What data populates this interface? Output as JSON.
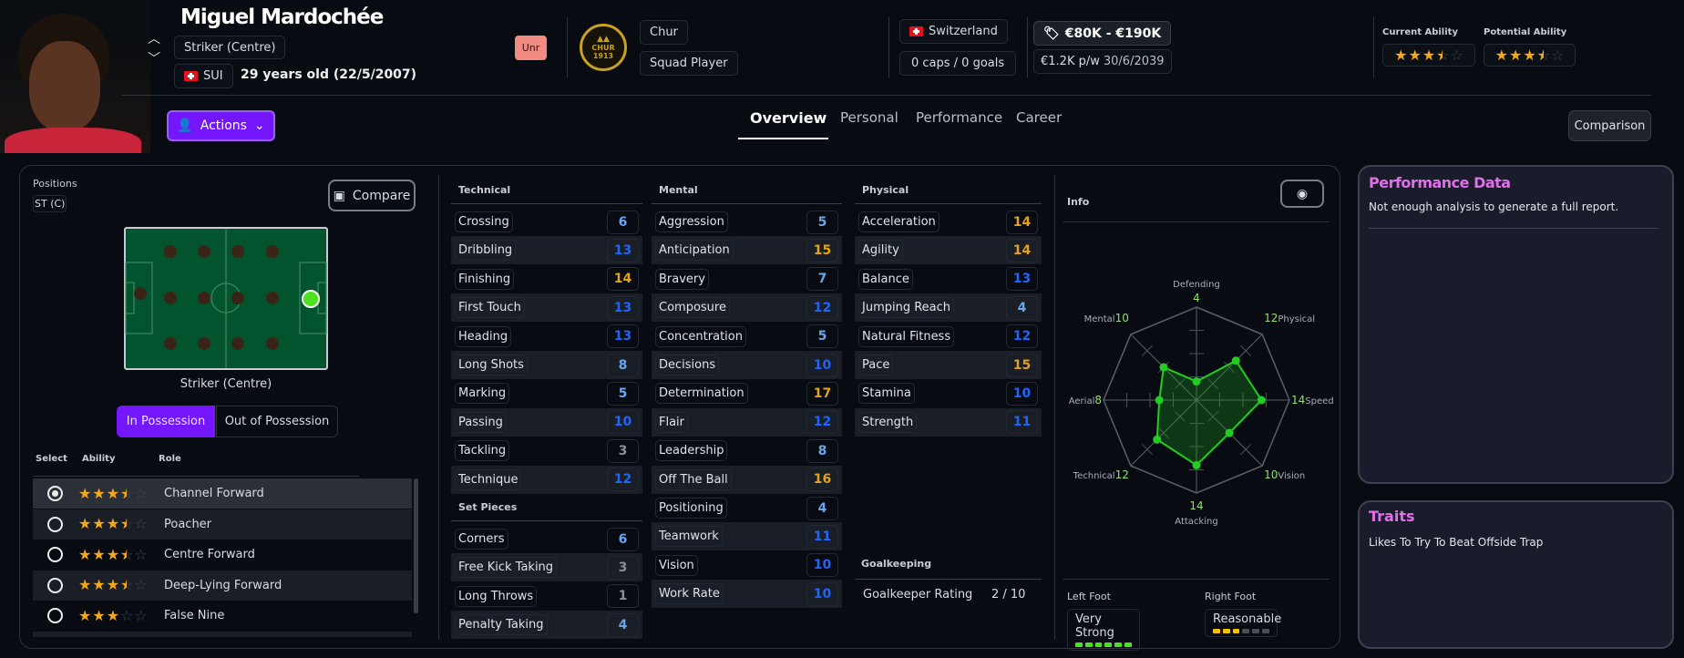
{
  "player": {
    "name": "Miguel Mardochée",
    "position": "Striker (Centre)",
    "nation_code": "SUI",
    "age": "29 years old (22/5/2007)",
    "status_badge": "Unr",
    "club": "Chur",
    "club_logo_text": "CHUR 1913",
    "squad_status": "Squad Player",
    "nationality": "Switzerland",
    "caps": "0 caps / 0 goals",
    "value": "€80K - €190K",
    "wage": "€1.2K p/w",
    "contract_end": "30/6/2039",
    "current_ability_label": "Current Ability",
    "current_ability_stars": 3.5,
    "potential_ability_label": "Potential Ability",
    "potential_ability_stars": 3.5
  },
  "actions_label": "Actions",
  "tabs": [
    "Overview",
    "Personal",
    "Performance",
    "Career"
  ],
  "active_tab": "Overview",
  "comparison_label": "Comparison",
  "positions": {
    "label": "Positions",
    "chip": "ST (C)",
    "compare_label": "Compare",
    "pitch_caption": "Striker (Centre)",
    "toggle": [
      "In Possession",
      "Out of Possession"
    ]
  },
  "roles": {
    "headers": [
      "Select",
      "Ability",
      "Role"
    ],
    "items": [
      {
        "name": "Channel Forward",
        "stars": 3.5,
        "selected": true
      },
      {
        "name": "Poacher",
        "stars": 3.5,
        "selected": false
      },
      {
        "name": "Centre Forward",
        "stars": 3.5,
        "selected": false
      },
      {
        "name": "Deep-Lying Forward",
        "stars": 3.5,
        "selected": false
      },
      {
        "name": "False Nine",
        "stars": 3,
        "selected": false
      }
    ]
  },
  "attributes": {
    "technical_title": "Technical",
    "technical": [
      [
        "Crossing",
        6
      ],
      [
        "Dribbling",
        13
      ],
      [
        "Finishing",
        14
      ],
      [
        "First Touch",
        13
      ],
      [
        "Heading",
        13
      ],
      [
        "Long Shots",
        8
      ],
      [
        "Marking",
        5
      ],
      [
        "Passing",
        10
      ],
      [
        "Tackling",
        3
      ],
      [
        "Technique",
        12
      ]
    ],
    "set_pieces_title": "Set Pieces",
    "set_pieces": [
      [
        "Corners",
        6
      ],
      [
        "Free Kick Taking",
        3
      ],
      [
        "Long Throws",
        1
      ],
      [
        "Penalty Taking",
        4
      ]
    ],
    "mental_title": "Mental",
    "mental": [
      [
        "Aggression",
        5
      ],
      [
        "Anticipation",
        15
      ],
      [
        "Bravery",
        7
      ],
      [
        "Composure",
        12
      ],
      [
        "Concentration",
        5
      ],
      [
        "Decisions",
        10
      ],
      [
        "Determination",
        17
      ],
      [
        "Flair",
        12
      ],
      [
        "Leadership",
        8
      ],
      [
        "Off The Ball",
        16
      ],
      [
        "Positioning",
        4
      ],
      [
        "Teamwork",
        11
      ],
      [
        "Vision",
        10
      ],
      [
        "Work Rate",
        10
      ]
    ],
    "physical_title": "Physical",
    "physical": [
      [
        "Acceleration",
        14
      ],
      [
        "Agility",
        14
      ],
      [
        "Balance",
        13
      ],
      [
        "Jumping Reach",
        4
      ],
      [
        "Natural Fitness",
        12
      ],
      [
        "Pace",
        15
      ],
      [
        "Stamina",
        10
      ],
      [
        "Strength",
        11
      ]
    ],
    "goalkeeping_title": "Goalkeeping",
    "goalkeeper_rating_label": "Goalkeeper Rating",
    "goalkeeper_rating": "2 / 10"
  },
  "info": {
    "title": "Info",
    "left_foot_label": "Left Foot",
    "left_foot": "Very Strong",
    "left_foot_level": 6,
    "right_foot_label": "Right Foot",
    "right_foot": "Reasonable",
    "right_foot_level": 3
  },
  "chart_data": {
    "type": "radar",
    "max": 20,
    "axes": [
      "Defending",
      "Physical",
      "Speed",
      "Vision",
      "Attacking",
      "Technical",
      "Aerial",
      "Mental"
    ],
    "values": [
      4,
      12,
      14,
      10,
      14,
      12,
      8,
      10
    ],
    "color": "#22cc22"
  },
  "performance": {
    "title": "Performance Data",
    "text": "Not enough analysis to generate a full report."
  },
  "traits": {
    "title": "Traits",
    "items": [
      "Likes To Try To Beat Offside Trap"
    ]
  }
}
